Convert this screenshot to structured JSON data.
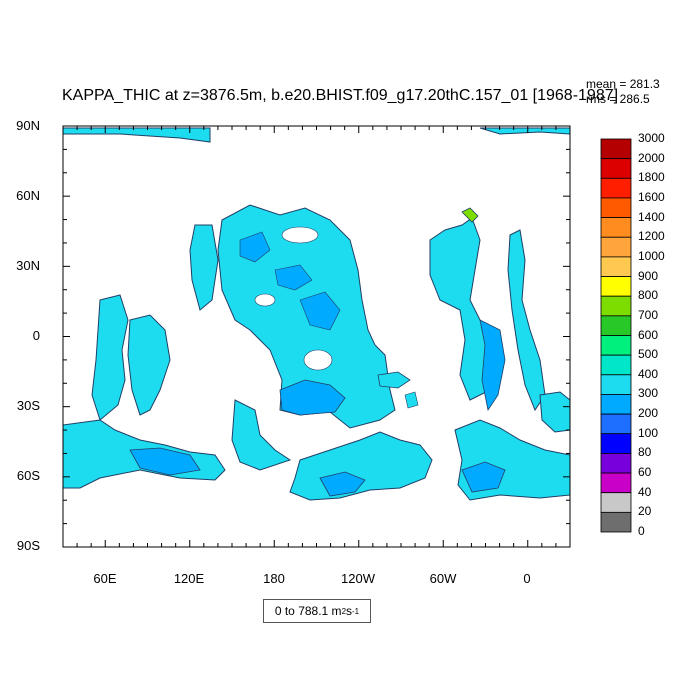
{
  "title": "KAPPA_THIC at z=3876.5m, b.e20.BHIST.f09_g17.20thC.157_01 [1968-1987]",
  "stats": {
    "mean": "mean = 281.3",
    "rms": "rms = 286.5"
  },
  "y_labels": [
    "90N",
    "60N",
    "30N",
    "0",
    "30S",
    "60S",
    "90S"
  ],
  "x_labels": [
    "60E",
    "120E",
    "180",
    "120W",
    "60W",
    "0"
  ],
  "range": {
    "text": "0 to 788.1 m",
    "unit_exp1": "2",
    "mid": " s",
    "unit_exp2": "-1"
  },
  "colorbar": {
    "labels": [
      "3000",
      "2000",
      "1800",
      "1600",
      "1400",
      "1200",
      "1000",
      "900",
      "800",
      "700",
      "600",
      "500",
      "400",
      "300",
      "200",
      "100",
      "80",
      "60",
      "40",
      "20",
      "0"
    ],
    "colors": [
      "#b40000",
      "#dc0000",
      "#ff1e00",
      "#ff5a00",
      "#ff8c1e",
      "#ffa53c",
      "#ffc850",
      "#ffff00",
      "#7ddc00",
      "#28c828",
      "#00f07d",
      "#00e6c8",
      "#1edcf0",
      "#00aaff",
      "#1e6eff",
      "#0000ff",
      "#7800dc",
      "#c800c8",
      "#c8c8c8",
      "#6e6e6e"
    ]
  },
  "map_colors": {
    "ocean_main": "#1edcf0",
    "ocean_mid": "#00aaff",
    "ocean_deep": "#1e6eff",
    "land": "#ffffff"
  }
}
